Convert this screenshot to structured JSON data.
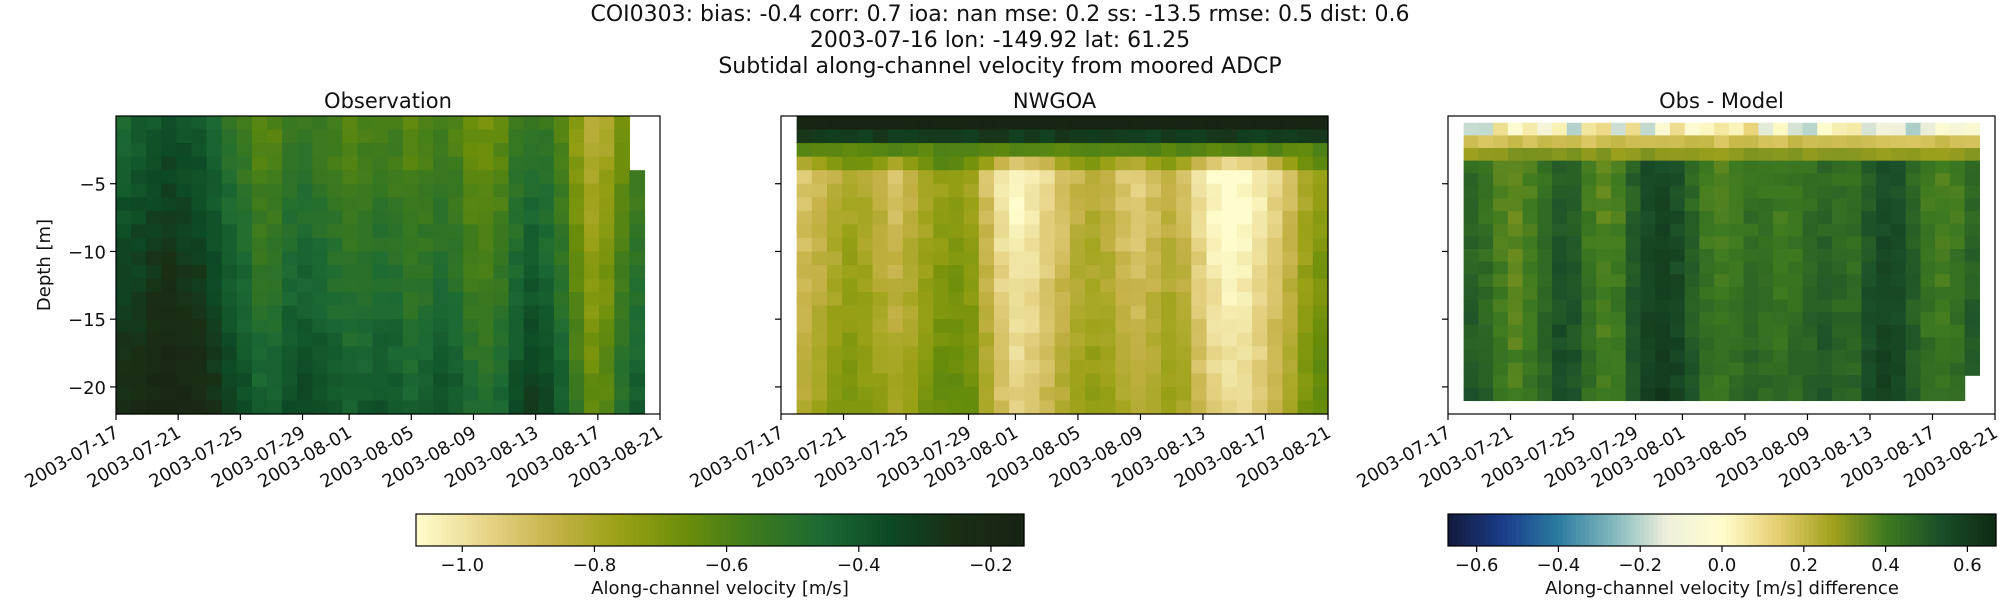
{
  "figure": {
    "title_lines": [
      "COI0303: bias: -0.4  corr: 0.7  ioa: nan  mse: 0.2  ss: -13.5  rmse: 0.5  dist: 0.6",
      "2003-07-16 lon: -149.92 lat: 61.25",
      "Subtidal along-channel velocity from moored ADCP"
    ]
  },
  "chart_data": [
    {
      "type": "heatmap",
      "title": "Observation",
      "ylabel": "Depth [m]",
      "x_tick_labels": [
        "2003-07-17",
        "2003-07-21",
        "2003-07-25",
        "2003-07-29",
        "2003-08-01",
        "2003-08-05",
        "2003-08-09",
        "2003-08-13",
        "2003-08-17",
        "2003-08-21"
      ],
      "y_ticks": [
        -5,
        -10,
        -15,
        -20
      ],
      "ylim": [
        -22,
        0
      ],
      "x_range": [
        "2003-07-17",
        "2003-08-21"
      ],
      "data_range": [
        "2003-07-17",
        "2003-08-20"
      ],
      "depth_range": [
        -22,
        0
      ],
      "approx_column_means": [
        -0.38,
        -0.36,
        -0.33,
        -0.31,
        -0.33,
        -0.35,
        -0.4,
        -0.45,
        -0.5,
        -0.56,
        -0.55,
        -0.5,
        -0.48,
        -0.5,
        -0.53,
        -0.56,
        -0.54,
        -0.52,
        -0.53,
        -0.57,
        -0.55,
        -0.52,
        -0.54,
        -0.6,
        -0.62,
        -0.58,
        -0.5,
        -0.45,
        -0.48,
        -0.55,
        -0.68,
        -0.78,
        -0.74,
        -0.62,
        -0.55
      ]
    },
    {
      "type": "heatmap",
      "title": "NWGOA",
      "x_tick_labels": [
        "2003-07-17",
        "2003-07-21",
        "2003-07-25",
        "2003-07-29",
        "2003-08-01",
        "2003-08-05",
        "2003-08-09",
        "2003-08-13",
        "2003-08-17",
        "2003-08-21"
      ],
      "y_ticks": [
        -5,
        -10,
        -15,
        -20
      ],
      "ylim": [
        -22,
        0
      ],
      "x_range": [
        "2003-07-17",
        "2003-08-21"
      ],
      "data_range": [
        "2003-07-18",
        "2003-08-21"
      ],
      "depth_range": [
        -22,
        0
      ],
      "approx_column_means": [
        -0.88,
        -0.85,
        -0.8,
        -0.76,
        -0.78,
        -0.82,
        -0.86,
        -0.82,
        -0.76,
        -0.72,
        -0.7,
        -0.74,
        -0.86,
        -0.97,
        -1.02,
        -0.99,
        -0.94,
        -0.88,
        -0.83,
        -0.8,
        -0.82,
        -0.88,
        -0.9,
        -0.86,
        -0.82,
        -0.86,
        -0.95,
        -1.02,
        -1.05,
        -1.03,
        -0.99,
        -0.92,
        -0.85,
        -0.76,
        -0.7
      ]
    },
    {
      "type": "heatmap",
      "title": "Obs - Model",
      "x_tick_labels": [
        "2003-07-17",
        "2003-07-21",
        "2003-07-25",
        "2003-07-29",
        "2003-08-01",
        "2003-08-05",
        "2003-08-09",
        "2003-08-13",
        "2003-08-17",
        "2003-08-21"
      ],
      "y_ticks": [
        -5,
        -10,
        -15,
        -20
      ],
      "ylim": [
        -22,
        0
      ],
      "x_range": [
        "2003-07-17",
        "2003-08-21"
      ],
      "data_range": [
        "2003-07-18",
        "2003-08-20"
      ],
      "depth_range": [
        -21,
        -0.5
      ],
      "approx_column_means": [
        0.48,
        0.45,
        0.4,
        0.36,
        0.4,
        0.45,
        0.52,
        0.5,
        0.42,
        0.38,
        0.4,
        0.5,
        0.56,
        0.58,
        0.55,
        0.48,
        0.42,
        0.4,
        0.42,
        0.45,
        0.44,
        0.42,
        0.43,
        0.46,
        0.48,
        0.46,
        0.45,
        0.52,
        0.56,
        0.54,
        0.48,
        0.42,
        0.4,
        0.42,
        0.48
      ]
    }
  ],
  "colorbars": [
    {
      "label": "Along-channel velocity [m/s]",
      "ticks": [
        "−1.0",
        "−0.8",
        "−0.6",
        "−0.4",
        "−0.2"
      ],
      "tick_values": [
        -1.0,
        -0.8,
        -0.6,
        -0.4,
        -0.2
      ],
      "range": [
        -1.07,
        -0.15
      ],
      "colormap": "speed"
    },
    {
      "label": "Along-channel velocity [m/s] difference",
      "ticks": [
        "−0.6",
        "−0.4",
        "−0.2",
        "0.0",
        "0.2",
        "0.4",
        "0.6"
      ],
      "tick_values": [
        -0.6,
        -0.4,
        -0.2,
        0.0,
        0.2,
        0.4,
        0.6
      ],
      "range": [
        -0.67,
        0.67
      ],
      "colormap": "delta"
    }
  ],
  "colors": {
    "speed": [
      "#fffdcd",
      "#e8d68b",
      "#c7b34a",
      "#9aa116",
      "#6b8e0a",
      "#3d7a1e",
      "#1d6a34",
      "#0d4a26",
      "#1a2e16",
      "#172313"
    ],
    "delta": [
      "#121a3a",
      "#1b3c8a",
      "#2c7ba0",
      "#7fb8bc",
      "#f0f0dc",
      "#fffdcd",
      "#e6cf72",
      "#a2a21e",
      "#3e7a20",
      "#1a4f2a",
      "#0f2a14"
    ]
  }
}
